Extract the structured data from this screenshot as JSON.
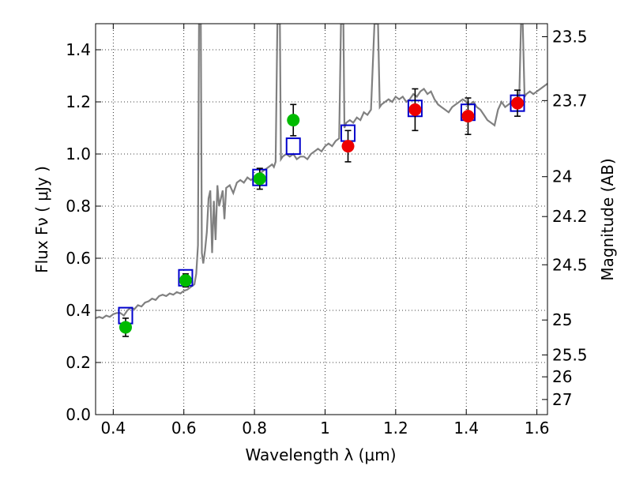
{
  "chart_data": {
    "type": "scatter",
    "title": "",
    "xlabel": "Wavelength  λ (μm)",
    "ylabel": "Flux  Fν  ( μJy )",
    "y2label": "Magnitude (AB)",
    "xlim": [
      0.35,
      1.63
    ],
    "ylim": [
      0.0,
      1.5
    ],
    "grid": true,
    "xticks": [
      0.4,
      0.6,
      0.8,
      1.0,
      1.2,
      1.4,
      1.6
    ],
    "xtick_labels": [
      "0.4",
      "0.6",
      "0.8",
      "1",
      "1.2",
      "1.4",
      "1.6"
    ],
    "yticks": [
      0.0,
      0.2,
      0.4,
      0.6,
      0.8,
      1.0,
      1.2,
      1.4
    ],
    "ytick_labels": [
      "0.0",
      "0.2",
      "0.4",
      "0.6",
      "0.8",
      "1.0",
      "1.2",
      "1.4"
    ],
    "y2ticks": [
      {
        "label": "23.5",
        "flux": 1.45
      },
      {
        "label": "23.7",
        "flux": 1.205
      },
      {
        "label": "24",
        "flux": 0.913
      },
      {
        "label": "24.2",
        "flux": 0.76
      },
      {
        "label": "24.5",
        "flux": 0.575
      },
      {
        "label": "25",
        "flux": 0.363
      },
      {
        "label": "25.5",
        "flux": 0.229
      },
      {
        "label": "26",
        "flux": 0.145
      },
      {
        "label": "27",
        "flux": 0.058
      }
    ],
    "series": [
      {
        "type": "line",
        "color": "#808080",
        "points": [
          [
            0.35,
            0.37
          ],
          [
            0.36,
            0.375
          ],
          [
            0.37,
            0.37
          ],
          [
            0.38,
            0.38
          ],
          [
            0.39,
            0.375
          ],
          [
            0.4,
            0.385
          ],
          [
            0.41,
            0.39
          ],
          [
            0.42,
            0.39
          ],
          [
            0.43,
            0.38
          ],
          [
            0.44,
            0.4
          ],
          [
            0.45,
            0.41
          ],
          [
            0.46,
            0.405
          ],
          [
            0.47,
            0.42
          ],
          [
            0.48,
            0.415
          ],
          [
            0.49,
            0.43
          ],
          [
            0.5,
            0.435
          ],
          [
            0.51,
            0.445
          ],
          [
            0.52,
            0.44
          ],
          [
            0.53,
            0.455
          ],
          [
            0.54,
            0.46
          ],
          [
            0.55,
            0.455
          ],
          [
            0.56,
            0.465
          ],
          [
            0.57,
            0.46
          ],
          [
            0.58,
            0.47
          ],
          [
            0.59,
            0.465
          ],
          [
            0.6,
            0.475
          ],
          [
            0.61,
            0.48
          ],
          [
            0.62,
            0.49
          ],
          [
            0.63,
            0.5
          ],
          [
            0.635,
            0.54
          ],
          [
            0.64,
            0.65
          ],
          [
            0.643,
            1.5
          ],
          [
            0.648,
            1.5
          ],
          [
            0.651,
            0.62
          ],
          [
            0.655,
            0.58
          ],
          [
            0.66,
            0.63
          ],
          [
            0.665,
            0.7
          ],
          [
            0.67,
            0.83
          ],
          [
            0.675,
            0.86
          ],
          [
            0.68,
            0.62
          ],
          [
            0.685,
            0.82
          ],
          [
            0.69,
            0.67
          ],
          [
            0.695,
            0.88
          ],
          [
            0.7,
            0.8
          ],
          [
            0.71,
            0.86
          ],
          [
            0.715,
            0.75
          ],
          [
            0.72,
            0.87
          ],
          [
            0.73,
            0.88
          ],
          [
            0.74,
            0.85
          ],
          [
            0.75,
            0.89
          ],
          [
            0.76,
            0.9
          ],
          [
            0.77,
            0.89
          ],
          [
            0.78,
            0.91
          ],
          [
            0.79,
            0.9
          ],
          [
            0.8,
            0.91
          ],
          [
            0.81,
            0.92
          ],
          [
            0.82,
            0.93
          ],
          [
            0.83,
            0.94
          ],
          [
            0.84,
            0.95
          ],
          [
            0.85,
            0.96
          ],
          [
            0.855,
            0.95
          ],
          [
            0.86,
            0.97
          ],
          [
            0.865,
            1.5
          ],
          [
            0.872,
            1.5
          ],
          [
            0.875,
            0.98
          ],
          [
            0.88,
            0.99
          ],
          [
            0.89,
            1.0
          ],
          [
            0.9,
            0.99
          ],
          [
            0.91,
            1.0
          ],
          [
            0.92,
            0.98
          ],
          [
            0.93,
            0.99
          ],
          [
            0.94,
            0.99
          ],
          [
            0.95,
            0.98
          ],
          [
            0.96,
            1.0
          ],
          [
            0.97,
            1.01
          ],
          [
            0.98,
            1.02
          ],
          [
            0.99,
            1.01
          ],
          [
            1.0,
            1.03
          ],
          [
            1.01,
            1.04
          ],
          [
            1.02,
            1.03
          ],
          [
            1.03,
            1.05
          ],
          [
            1.04,
            1.06
          ],
          [
            1.045,
            1.5
          ],
          [
            1.052,
            1.5
          ],
          [
            1.055,
            1.1
          ],
          [
            1.06,
            1.12
          ],
          [
            1.07,
            1.13
          ],
          [
            1.08,
            1.12
          ],
          [
            1.09,
            1.14
          ],
          [
            1.1,
            1.13
          ],
          [
            1.11,
            1.16
          ],
          [
            1.12,
            1.15
          ],
          [
            1.13,
            1.17
          ],
          [
            1.14,
            1.5
          ],
          [
            1.15,
            1.5
          ],
          [
            1.155,
            1.18
          ],
          [
            1.16,
            1.19
          ],
          [
            1.17,
            1.2
          ],
          [
            1.18,
            1.21
          ],
          [
            1.19,
            1.2
          ],
          [
            1.2,
            1.22
          ],
          [
            1.21,
            1.21
          ],
          [
            1.22,
            1.22
          ],
          [
            1.23,
            1.2
          ],
          [
            1.24,
            1.21
          ],
          [
            1.25,
            1.23
          ],
          [
            1.26,
            1.22
          ],
          [
            1.27,
            1.24
          ],
          [
            1.28,
            1.25
          ],
          [
            1.29,
            1.23
          ],
          [
            1.3,
            1.24
          ],
          [
            1.31,
            1.21
          ],
          [
            1.32,
            1.19
          ],
          [
            1.33,
            1.18
          ],
          [
            1.34,
            1.17
          ],
          [
            1.35,
            1.16
          ],
          [
            1.36,
            1.18
          ],
          [
            1.37,
            1.19
          ],
          [
            1.38,
            1.2
          ],
          [
            1.39,
            1.21
          ],
          [
            1.4,
            1.2
          ],
          [
            1.41,
            1.19
          ],
          [
            1.42,
            1.2
          ],
          [
            1.43,
            1.18
          ],
          [
            1.44,
            1.17
          ],
          [
            1.45,
            1.15
          ],
          [
            1.46,
            1.13
          ],
          [
            1.47,
            1.12
          ],
          [
            1.48,
            1.11
          ],
          [
            1.49,
            1.17
          ],
          [
            1.5,
            1.2
          ],
          [
            1.51,
            1.18
          ],
          [
            1.52,
            1.19
          ],
          [
            1.53,
            1.2
          ],
          [
            1.54,
            1.21
          ],
          [
            1.55,
            1.22
          ],
          [
            1.555,
            1.5
          ],
          [
            1.56,
            1.5
          ],
          [
            1.565,
            1.22
          ],
          [
            1.57,
            1.23
          ],
          [
            1.58,
            1.24
          ],
          [
            1.59,
            1.23
          ],
          [
            1.6,
            1.24
          ],
          [
            1.61,
            1.25
          ],
          [
            1.62,
            1.26
          ],
          [
            1.63,
            1.27
          ]
        ]
      },
      {
        "type": "points",
        "marker": "square",
        "color": "#0000cc",
        "x": [
          0.435,
          0.605,
          0.815,
          0.91,
          1.065,
          1.255,
          1.405,
          1.545
        ],
        "y": [
          0.38,
          0.525,
          0.91,
          1.03,
          1.08,
          1.175,
          1.16,
          1.195
        ]
      },
      {
        "type": "points",
        "marker": "circle",
        "color": "#00bb00",
        "x": [
          0.435,
          0.605,
          0.815,
          0.91
        ],
        "y": [
          0.335,
          0.515,
          0.905,
          1.13
        ],
        "yerr": [
          0.035,
          0.025,
          0.04,
          0.06
        ]
      },
      {
        "type": "points",
        "marker": "circle",
        "color": "#ee0000",
        "x": [
          1.065,
          1.255,
          1.405,
          1.545
        ],
        "y": [
          1.03,
          1.17,
          1.145,
          1.195
        ],
        "yerr": [
          0.06,
          0.08,
          0.07,
          0.05
        ]
      }
    ]
  }
}
